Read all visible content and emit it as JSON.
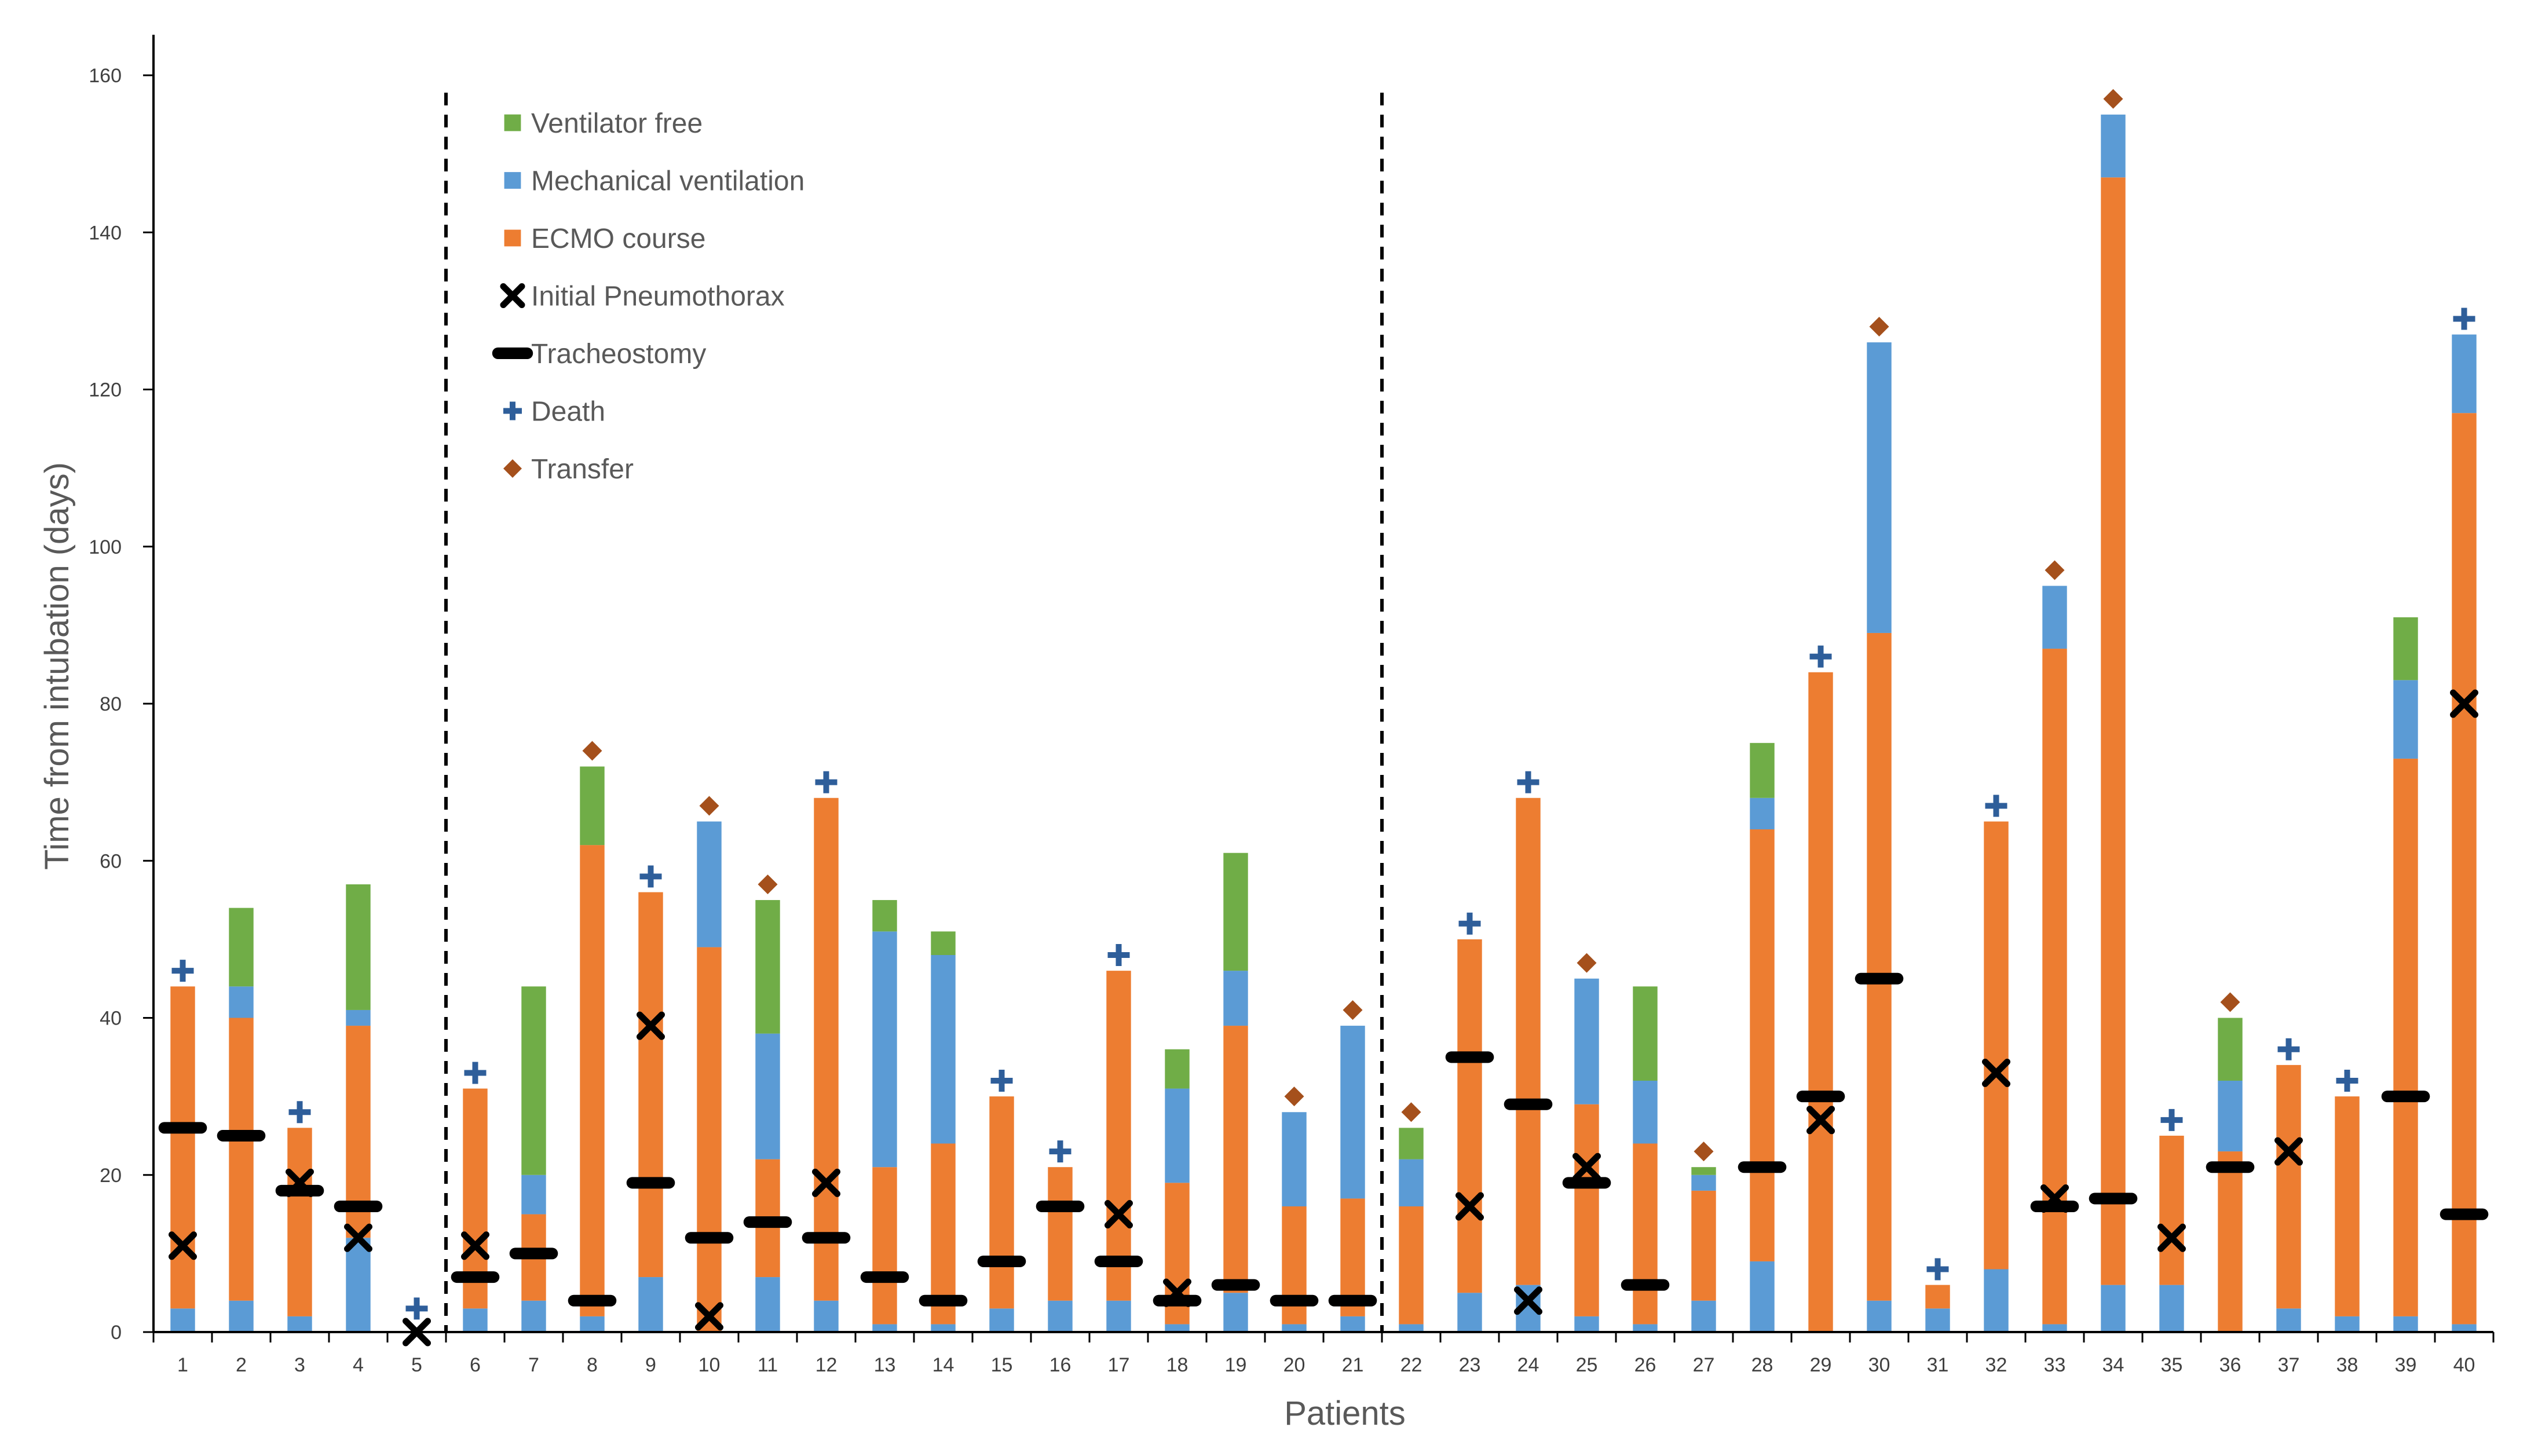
{
  "chart_data": {
    "type": "bar",
    "stacked": true,
    "title": "",
    "xlabel": "Patients",
    "ylabel": "Time from intubation (days)",
    "ylim": [
      0,
      160
    ],
    "yticks": [
      0,
      20,
      40,
      60,
      80,
      100,
      120,
      140,
      160
    ],
    "grid": false,
    "legend_position": "top-left",
    "group_dividers_after_patient": [
      5,
      21
    ],
    "categories": [
      "1",
      "2",
      "3",
      "4",
      "5",
      "6",
      "7",
      "8",
      "9",
      "10",
      "11",
      "12",
      "13",
      "14",
      "15",
      "16",
      "17",
      "18",
      "19",
      "20",
      "21",
      "22",
      "23",
      "24",
      "25",
      "26",
      "27",
      "28",
      "29",
      "30",
      "31",
      "32",
      "33",
      "34",
      "35",
      "36",
      "37",
      "38",
      "39",
      "40"
    ],
    "series": [
      {
        "name": "Mechanical ventilation (before ECMO)",
        "legend": false,
        "color": "#5B9BD5",
        "values": [
          3,
          4,
          2,
          12,
          0,
          3,
          4,
          2,
          7,
          0,
          7,
          4,
          1,
          1,
          3,
          4,
          4,
          1,
          5,
          1,
          2,
          1,
          5,
          6,
          2,
          1,
          4,
          9,
          0,
          4,
          3,
          8,
          1,
          6,
          6,
          0,
          3,
          2,
          2,
          1
        ]
      },
      {
        "name": "ECMO course",
        "color": "#ED7D31",
        "values": [
          41,
          36,
          24,
          27,
          0,
          28,
          11,
          60,
          49,
          49,
          15,
          64,
          20,
          23,
          27,
          17,
          42,
          18,
          34,
          15,
          15,
          15,
          45,
          62,
          27,
          23,
          14,
          55,
          84,
          85,
          3,
          57,
          86,
          141,
          19,
          23,
          31,
          28,
          71,
          116
        ]
      },
      {
        "name": "Mechanical ventilation",
        "color": "#5B9BD5",
        "values": [
          0,
          4,
          0,
          2,
          0,
          0,
          5,
          0,
          0,
          16,
          16,
          0,
          30,
          24,
          0,
          0,
          0,
          12,
          7,
          12,
          22,
          6,
          0,
          0,
          16,
          8,
          2,
          4,
          0,
          37,
          0,
          0,
          8,
          8,
          0,
          9,
          0,
          0,
          10,
          10
        ]
      },
      {
        "name": "Ventilator free",
        "color": "#70AD47",
        "values": [
          0,
          10,
          0,
          16,
          0,
          0,
          24,
          10,
          0,
          0,
          17,
          0,
          4,
          3,
          0,
          0,
          0,
          5,
          15,
          0,
          0,
          4,
          0,
          0,
          0,
          12,
          1,
          7,
          0,
          0,
          0,
          0,
          0,
          0,
          0,
          8,
          0,
          0,
          8,
          0
        ]
      }
    ],
    "markers": [
      {
        "name": "Initial Pneumothorax",
        "symbol": "x",
        "color": "#000000",
        "points": [
          [
            1,
            11
          ],
          [
            3,
            19
          ],
          [
            4,
            12
          ],
          [
            5,
            0
          ],
          [
            6,
            11
          ],
          [
            9,
            39
          ],
          [
            10,
            2
          ],
          [
            12,
            19
          ],
          [
            17,
            15
          ],
          [
            18,
            5
          ],
          [
            23,
            16
          ],
          [
            24,
            4
          ],
          [
            25,
            21
          ],
          [
            29,
            27
          ],
          [
            32,
            33
          ],
          [
            33,
            17
          ],
          [
            35,
            12
          ],
          [
            37,
            23
          ],
          [
            40,
            80
          ]
        ]
      },
      {
        "name": "Tracheostomy",
        "symbol": "dash",
        "color": "#000000",
        "points": [
          [
            1,
            26
          ],
          [
            2,
            25
          ],
          [
            3,
            18
          ],
          [
            4,
            16
          ],
          [
            6,
            7
          ],
          [
            7,
            10
          ],
          [
            8,
            4
          ],
          [
            9,
            19
          ],
          [
            10,
            12
          ],
          [
            11,
            14
          ],
          [
            12,
            12
          ],
          [
            13,
            7
          ],
          [
            14,
            4
          ],
          [
            15,
            9
          ],
          [
            16,
            16
          ],
          [
            17,
            9
          ],
          [
            18,
            4
          ],
          [
            19,
            6
          ],
          [
            20,
            4
          ],
          [
            21,
            4
          ],
          [
            23,
            35
          ],
          [
            24,
            29
          ],
          [
            25,
            19
          ],
          [
            26,
            6
          ],
          [
            28,
            21
          ],
          [
            29,
            30
          ],
          [
            30,
            45
          ],
          [
            33,
            16
          ],
          [
            34,
            17
          ],
          [
            36,
            21
          ],
          [
            39,
            30
          ],
          [
            40,
            15
          ]
        ]
      },
      {
        "name": "Death",
        "symbol": "plus",
        "color": "#2E5E9A",
        "points": [
          [
            1,
            46
          ],
          [
            3,
            28
          ],
          [
            5,
            3
          ],
          [
            6,
            33
          ],
          [
            9,
            58
          ],
          [
            12,
            70
          ],
          [
            15,
            32
          ],
          [
            16,
            23
          ],
          [
            17,
            48
          ],
          [
            23,
            52
          ],
          [
            24,
            70
          ],
          [
            29,
            86
          ],
          [
            31,
            8
          ],
          [
            32,
            67
          ],
          [
            35,
            27
          ],
          [
            37,
            36
          ],
          [
            38,
            32
          ],
          [
            40,
            129
          ]
        ]
      },
      {
        "name": "Transfer",
        "symbol": "diamond",
        "color": "#A5501C",
        "points": [
          [
            8,
            74
          ],
          [
            10,
            67
          ],
          [
            11,
            57
          ],
          [
            20,
            30
          ],
          [
            21,
            41
          ],
          [
            22,
            28
          ],
          [
            25,
            47
          ],
          [
            27,
            23
          ],
          [
            30,
            128
          ],
          [
            33,
            97
          ],
          [
            34,
            157
          ],
          [
            36,
            42
          ]
        ]
      }
    ],
    "legend": [
      {
        "label": "Ventilator free",
        "symbol": "square",
        "color": "#70AD47"
      },
      {
        "label": "Mechanical ventilation",
        "symbol": "square",
        "color": "#5B9BD5"
      },
      {
        "label": "ECMO course",
        "symbol": "square",
        "color": "#ED7D31"
      },
      {
        "label": "Initial Pneumothorax",
        "symbol": "x",
        "color": "#000000"
      },
      {
        "label": "Tracheostomy",
        "symbol": "dash",
        "color": "#000000"
      },
      {
        "label": "Death",
        "symbol": "plus",
        "color": "#2E5E9A"
      },
      {
        "label": "Transfer",
        "symbol": "diamond",
        "color": "#A5501C"
      }
    ]
  }
}
